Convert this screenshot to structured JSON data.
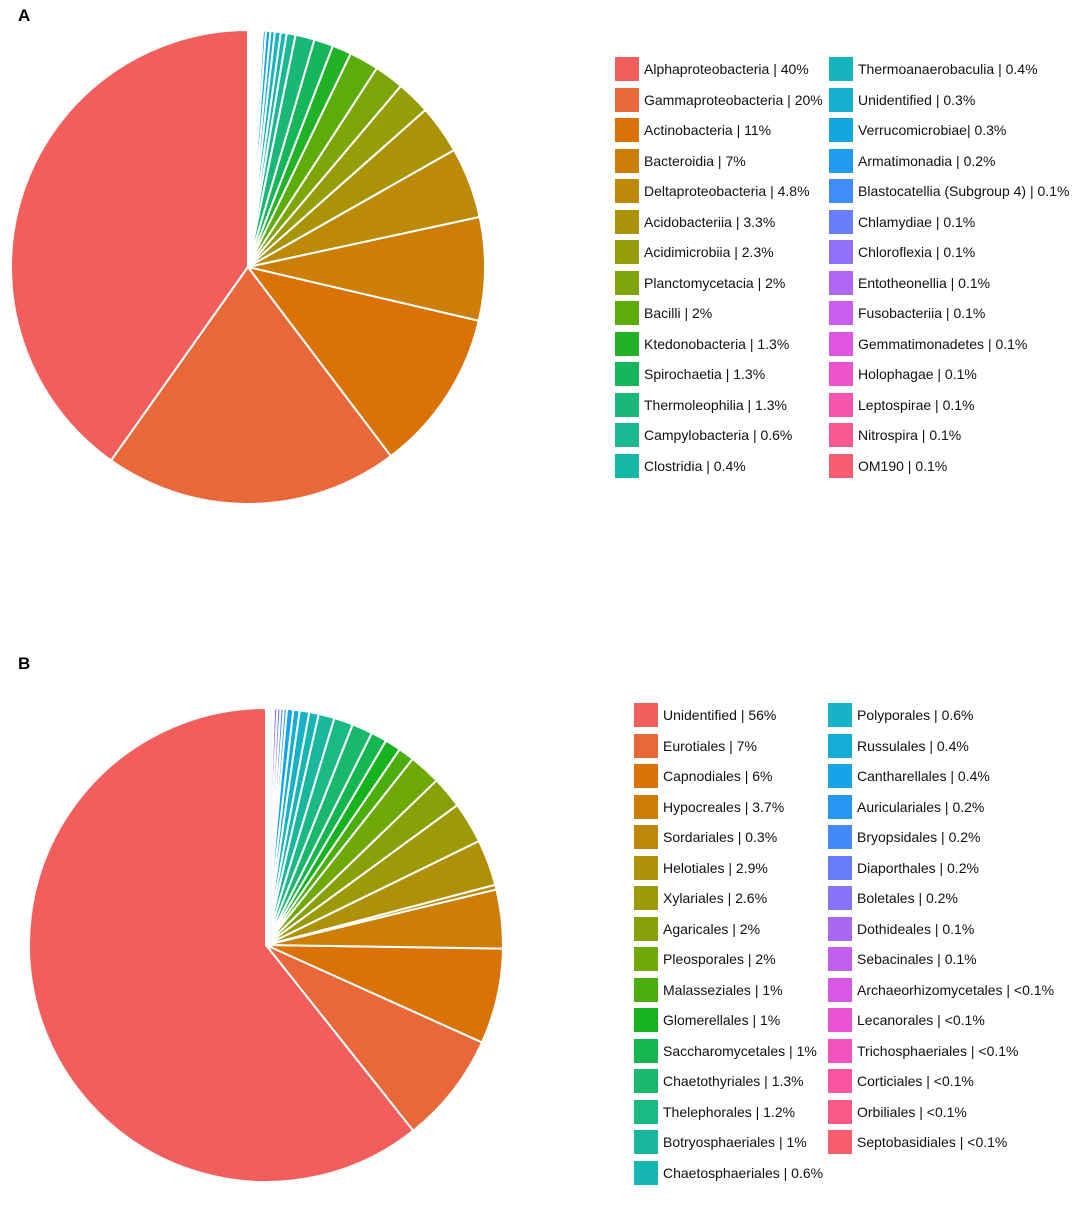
{
  "chart_data": [
    {
      "type": "pie",
      "panel": "A",
      "legend_position": "right",
      "slices": [
        {
          "label": "Alphaproteobacteria | 40%",
          "value": 40,
          "color": "#F25E5C"
        },
        {
          "label": "Gammaproteobacteria | 20%",
          "value": 20,
          "color": "#E8683A"
        },
        {
          "label": "Actinobacteria  | 11%",
          "value": 11,
          "color": "#DB7205"
        },
        {
          "label": "Bacteroidia | 7%",
          "value": 7,
          "color": "#CC7E06"
        },
        {
          "label": "Deltaproteobacteria | 4.8%",
          "value": 4.8,
          "color": "#BC8A07"
        },
        {
          "label": "Acidobacteriia | 3.3%",
          "value": 3.3,
          "color": "#AB9308"
        },
        {
          "label": "Acidimicrobiia | 2.3%",
          "value": 2.3,
          "color": "#969D08"
        },
        {
          "label": "Planctomycetacia | 2%",
          "value": 2,
          "color": "#7EA507"
        },
        {
          "label": "Bacilli | 2%",
          "value": 2,
          "color": "#5DAD0A"
        },
        {
          "label": "Ktedonobacteria | 1.3%",
          "value": 1.3,
          "color": "#21B227"
        },
        {
          "label": "Spirochaetia | 1.3%",
          "value": 1.3,
          "color": "#16B65A"
        },
        {
          "label": "Thermoleophilia | 1.3%",
          "value": 1.3,
          "color": "#1AB876"
        },
        {
          "label": "Campylobacteria | 0.6%",
          "value": 0.6,
          "color": "#1BB891"
        },
        {
          "label": "Clostridia | 0.4%",
          "value": 0.4,
          "color": "#17B7A8"
        },
        {
          "label": "Thermoanaerobaculia | 0.4%",
          "value": 0.4,
          "color": "#16B4BC"
        },
        {
          "label": "Unidentified | 0.3%",
          "value": 0.3,
          "color": "#14AFCE"
        },
        {
          "label": "Verrucomicrobiae| 0.3%",
          "value": 0.3,
          "color": "#14A7DF"
        },
        {
          "label": "Armatimonadia | 0.2%",
          "value": 0.2,
          "color": "#1F9CF0"
        },
        {
          "label": "Blastocatellia (Subgroup 4)  | 0.1%",
          "value": 0.1,
          "color": "#3E8DFA"
        },
        {
          "label": "Chlamydiae | 0.1%",
          "value": 0.1,
          "color": "#6A7EFB"
        },
        {
          "label": "Chloroflexia | 0.1%",
          "value": 0.1,
          "color": "#8F72F8"
        },
        {
          "label": "Entotheonellia | 0.1%",
          "value": 0.1,
          "color": "#AE66F3"
        },
        {
          "label": "Fusobacteriia | 0.1%",
          "value": 0.1,
          "color": "#C95EEE"
        },
        {
          "label": "Gemmatimonadetes | 0.1%",
          "value": 0.1,
          "color": "#DF56E2"
        },
        {
          "label": "Holophagae | 0.1%",
          "value": 0.1,
          "color": "#EE52CB"
        },
        {
          "label": "Leptospirae | 0.1%",
          "value": 0.1,
          "color": "#F754AE"
        },
        {
          "label": "Nitrospira | 0.1%",
          "value": 0.1,
          "color": "#FA5891"
        },
        {
          "label": "OM190 | 0.1%",
          "value": 0.1,
          "color": "#F85C73"
        }
      ]
    },
    {
      "type": "pie",
      "panel": "B",
      "legend_position": "right",
      "slices": [
        {
          "label": "Unidentified | 56%",
          "value": 56,
          "color": "#F25E5C"
        },
        {
          "label": "Eurotiales | 7%",
          "value": 7,
          "color": "#E8683A"
        },
        {
          "label": "Capnodiales | 6%",
          "value": 6,
          "color": "#DB7205"
        },
        {
          "label": "Hypocreales | 3.7%",
          "value": 3.7,
          "color": "#CC7E06"
        },
        {
          "label": "Sordariales | 0.3%",
          "value": 0.3,
          "color": "#BD8807"
        },
        {
          "label": "Helotiales | 2.9%",
          "value": 2.9,
          "color": "#AE9108"
        },
        {
          "label": "Xylariales | 2.6%",
          "value": 2.6,
          "color": "#9D9A08"
        },
        {
          "label": "Agaricales | 2%",
          "value": 2,
          "color": "#89A108"
        },
        {
          "label": "Pleosporales | 2%",
          "value": 2,
          "color": "#70A807"
        },
        {
          "label": "Malasseziales | 1%",
          "value": 1,
          "color": "#4CAE0D"
        },
        {
          "label": "Glomerellales | 1%",
          "value": 1,
          "color": "#17B31F"
        },
        {
          "label": "Saccharomycetales | 1%",
          "value": 1,
          "color": "#14B650"
        },
        {
          "label": "Chaetothyriales | 1.3%",
          "value": 1.3,
          "color": "#19B86C"
        },
        {
          "label": "Thelephorales | 1.2%",
          "value": 1.2,
          "color": "#1BB985"
        },
        {
          "label": "Botryosphaeriales | 1%",
          "value": 1,
          "color": "#19B89D"
        },
        {
          "label": "Chaetosphaeriales | 0.6%",
          "value": 0.6,
          "color": "#16B6B2"
        },
        {
          "label": "Polyporales | 0.6%",
          "value": 0.6,
          "color": "#15B3C5"
        },
        {
          "label": "Russulales | 0.4%",
          "value": 0.4,
          "color": "#13ADD6"
        },
        {
          "label": "Cantharellales | 0.4%",
          "value": 0.4,
          "color": "#16A4E6"
        },
        {
          "label": "Auriculariales | 0.2%",
          "value": 0.2,
          "color": "#2597F3"
        },
        {
          "label": "Bryopsidales | 0.2%",
          "value": 0.2,
          "color": "#4389FA"
        },
        {
          "label": "Diaporthales | 0.2%",
          "value": 0.2,
          "color": "#697DFB"
        },
        {
          "label": "Boletales | 0.2%",
          "value": 0.2,
          "color": "#8A72F8"
        },
        {
          "label": "Dothideales | 0.1%",
          "value": 0.1,
          "color": "#A868F4"
        },
        {
          "label": "Sebacinales | 0.1%",
          "value": 0.1,
          "color": "#C25FEF"
        },
        {
          "label": "Archaeorhizomycetales | <0.1%",
          "value": 0.05,
          "color": "#D858E6"
        },
        {
          "label": "Lecanorales | <0.1%",
          "value": 0.05,
          "color": "#E953D4"
        },
        {
          "label": "Trichosphaeriales | <0.1%",
          "value": 0.05,
          "color": "#F452BC"
        },
        {
          "label": "Corticiales | <0.1%",
          "value": 0.05,
          "color": "#F955A1"
        },
        {
          "label": "Orbiliales | <0.1%",
          "value": 0.05,
          "color": "#FA5986"
        },
        {
          "label": "Septobasidiales | <0.1%",
          "value": 0.05,
          "color": "#F75D6C"
        }
      ]
    }
  ],
  "panels": {
    "a_label": "A",
    "b_label": "B"
  }
}
